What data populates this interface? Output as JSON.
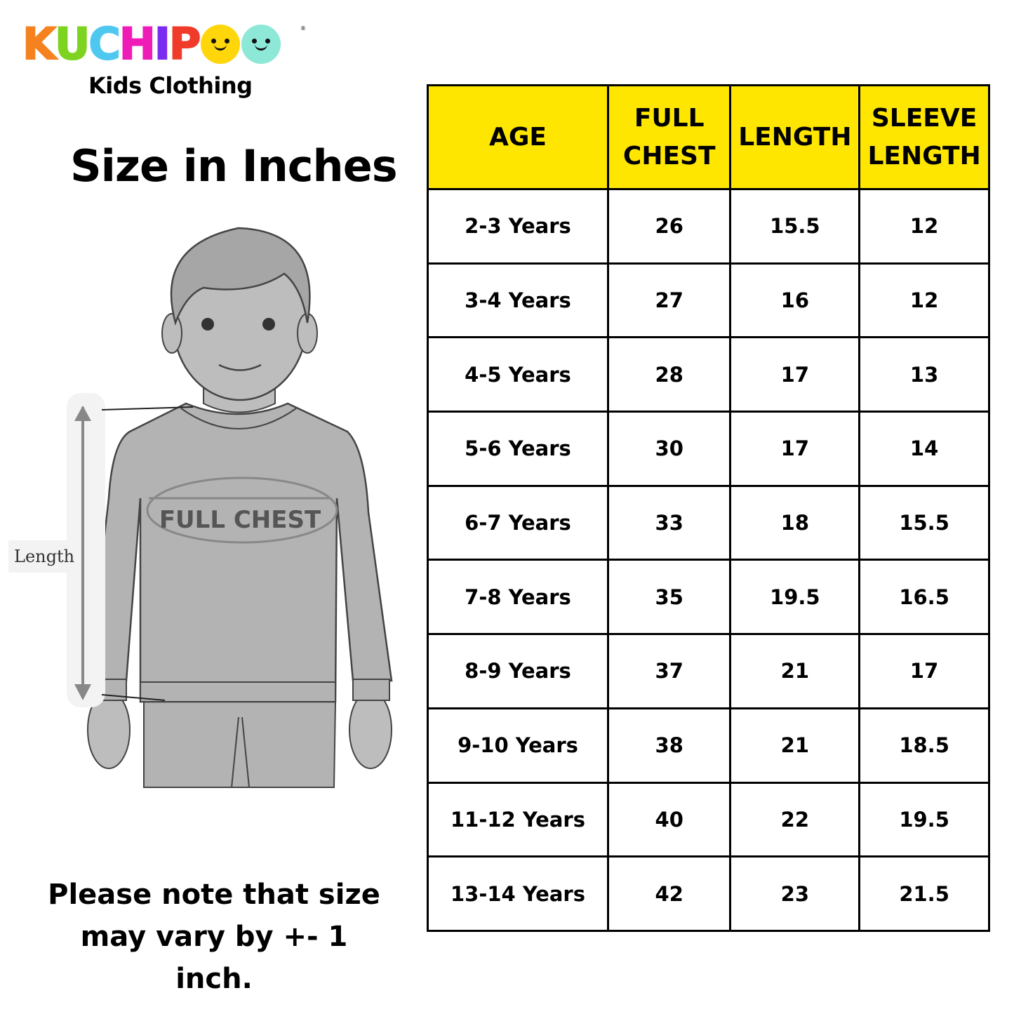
{
  "brand": {
    "logo_text": "KUCHIPOO",
    "letters": [
      "K",
      "U",
      "C",
      "H",
      "I",
      "P"
    ],
    "letter_colors": [
      "#f5821f",
      "#7ed321",
      "#4fc8f0",
      "#f01cb8",
      "#7b2cf0",
      "#f03a2a"
    ],
    "face_colors": [
      "#ffd60a",
      "#8ee8d8"
    ],
    "tagline": "Kids Clothing"
  },
  "title": "Size in Inches",
  "illustration": {
    "chest_label": "FULL CHEST",
    "length_label": "Length"
  },
  "note": "Please note that size may vary by +- 1 inch.",
  "table": {
    "header_color": "#ffe600",
    "headers": [
      "AGE",
      "FULL CHEST",
      "LENGTH",
      "SLEEVE LENGTH"
    ],
    "rows": [
      [
        "2-3 Years",
        "26",
        "15.5",
        "12"
      ],
      [
        "3-4 Years",
        "27",
        "16",
        "12"
      ],
      [
        "4-5 Years",
        "28",
        "17",
        "13"
      ],
      [
        "5-6 Years",
        "30",
        "17",
        "14"
      ],
      [
        "6-7 Years",
        "33",
        "18",
        "15.5"
      ],
      [
        "7-8 Years",
        "35",
        "19.5",
        "16.5"
      ],
      [
        "8-9 Years",
        "37",
        "21",
        "17"
      ],
      [
        "9-10 Years",
        "38",
        "21",
        "18.5"
      ],
      [
        "11-12 Years",
        "40",
        "22",
        "19.5"
      ],
      [
        "13-14 Years",
        "42",
        "23",
        "21.5"
      ]
    ]
  }
}
